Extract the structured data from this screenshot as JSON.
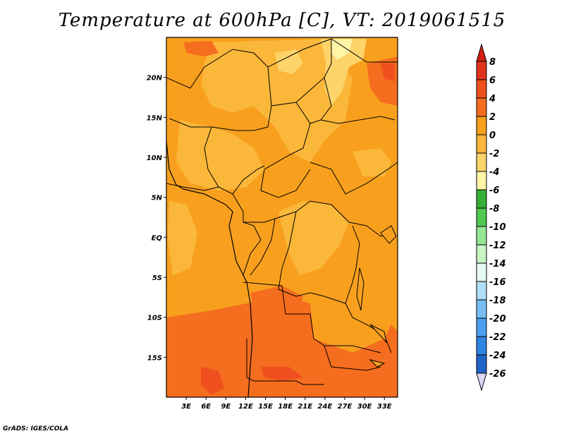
{
  "title": "Temperature at 600hPa [C], VT: 2019061515",
  "credit": "GrADS: IGES/COLA",
  "map": {
    "lat_labels": [
      {
        "label": "20N",
        "lat": 20
      },
      {
        "label": "15N",
        "lat": 15
      },
      {
        "label": "10N",
        "lat": 10
      },
      {
        "label": "5N",
        "lat": 5
      },
      {
        "label": "EQ",
        "lat": 0
      },
      {
        "label": "5S",
        "lat": -5
      },
      {
        "label": "10S",
        "lat": -10
      },
      {
        "label": "15S",
        "lat": -15
      }
    ],
    "lon_labels": [
      {
        "label": "3E",
        "lon": 3
      },
      {
        "label": "6E",
        "lon": 6
      },
      {
        "label": "9E",
        "lon": 9
      },
      {
        "label": "12E",
        "lon": 12
      },
      {
        "label": "15E",
        "lon": 15
      },
      {
        "label": "18E",
        "lon": 18
      },
      {
        "label": "21E",
        "lon": 21
      },
      {
        "label": "24E",
        "lon": 24
      },
      {
        "label": "27E",
        "lon": 27
      },
      {
        "label": "30E",
        "lon": 30
      },
      {
        "label": "33E",
        "lon": 33
      }
    ],
    "lon_range": [
      0,
      35
    ],
    "lat_range": [
      -20,
      25
    ]
  },
  "colorbar": {
    "labels": [
      "8",
      "6",
      "4",
      "2",
      "0",
      "-2",
      "-4",
      "-6",
      "-8",
      "-10",
      "-12",
      "-14",
      "-16",
      "-18",
      "-20",
      "-22",
      "-24",
      "-26"
    ],
    "colors": [
      "#e0341a",
      "#f0501e",
      "#f56d1e",
      "#f8a01e",
      "#fbb73a",
      "#fdd46a",
      "#fef5a6",
      "#37b037",
      "#50c850",
      "#96e692",
      "#c8f5c2",
      "#e6f8f4",
      "#b0e0f8",
      "#78bef5",
      "#4a9ff0",
      "#2f84e2",
      "#1f64c8",
      "#1446ad",
      "#0c2f8e",
      "#0c1466"
    ],
    "top_color": "#d22010",
    "bottom_color": "#e0d8f8"
  }
}
